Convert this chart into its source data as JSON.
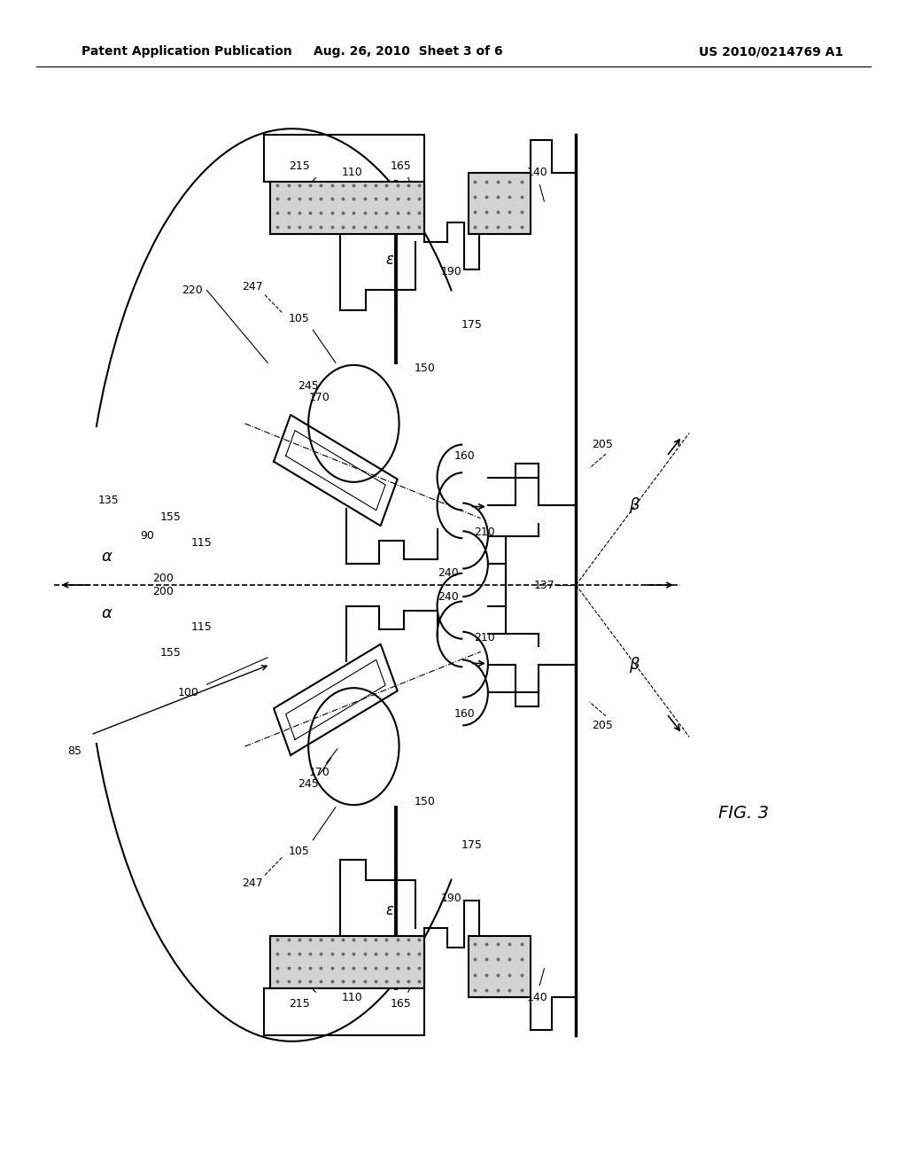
{
  "background_color": "#ffffff",
  "header_left": "Patent Application Publication",
  "header_center": "Aug. 26, 2010  Sheet 3 of 6",
  "header_right": "US 2010/0214769 A1",
  "fig_label": "FIG. 3",
  "title_fontsize": 10,
  "label_fontsize": 9,
  "fig_label_fontsize": 14
}
